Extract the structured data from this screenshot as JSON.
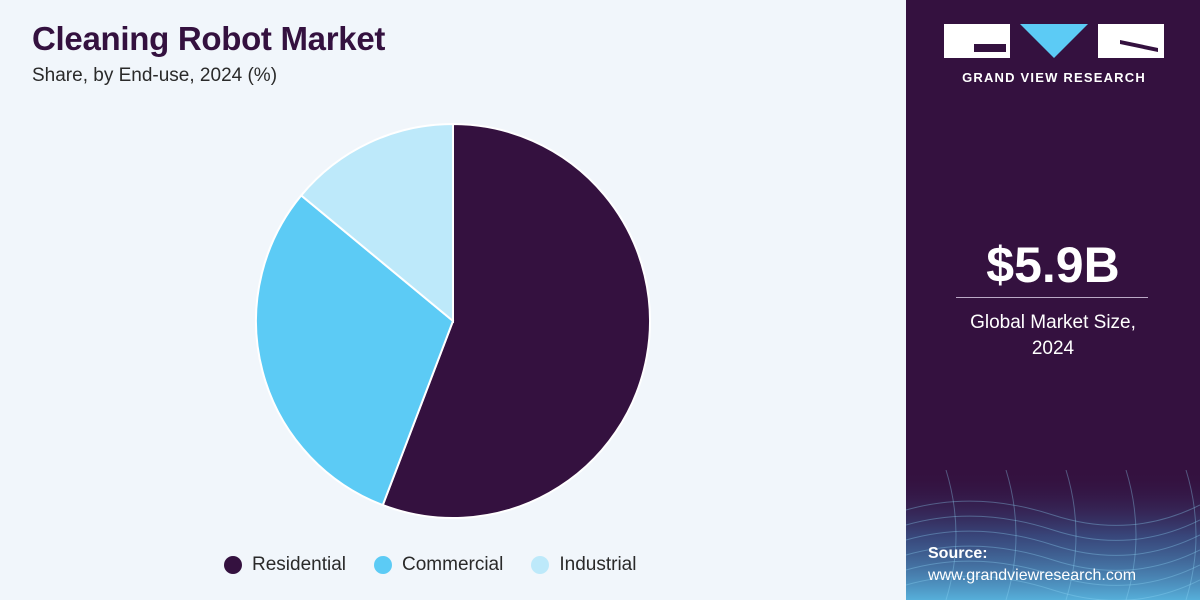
{
  "header": {
    "title": "Cleaning Robot Market",
    "subtitle": "Share, by End-use, 2024 (%)"
  },
  "chart_data": {
    "type": "pie",
    "title": "Cleaning Robot Market",
    "subtitle": "Share, by End-use, 2024 (%)",
    "categories": [
      "Residential",
      "Commercial",
      "Industrial"
    ],
    "values": [
      55.8,
      30.2,
      14.0
    ],
    "colors": [
      "#34113f",
      "#5ccbf5",
      "#bde9fa"
    ],
    "start_angle_deg": 0,
    "direction": "clockwise",
    "legend_position": "bottom"
  },
  "sidebar": {
    "logo_text": "GRAND VIEW RESEARCH",
    "market_size": "$5.9B",
    "market_label_line1": "Global Market Size,",
    "market_label_line2": "2024",
    "source_label": "Source:",
    "source_url": "www.grandviewresearch.com"
  },
  "colors": {
    "brand_dark": "#34113f",
    "accent_blue": "#5ccbf5",
    "light_blue": "#bde9fa",
    "panel_bg": "#f1f6fb"
  }
}
